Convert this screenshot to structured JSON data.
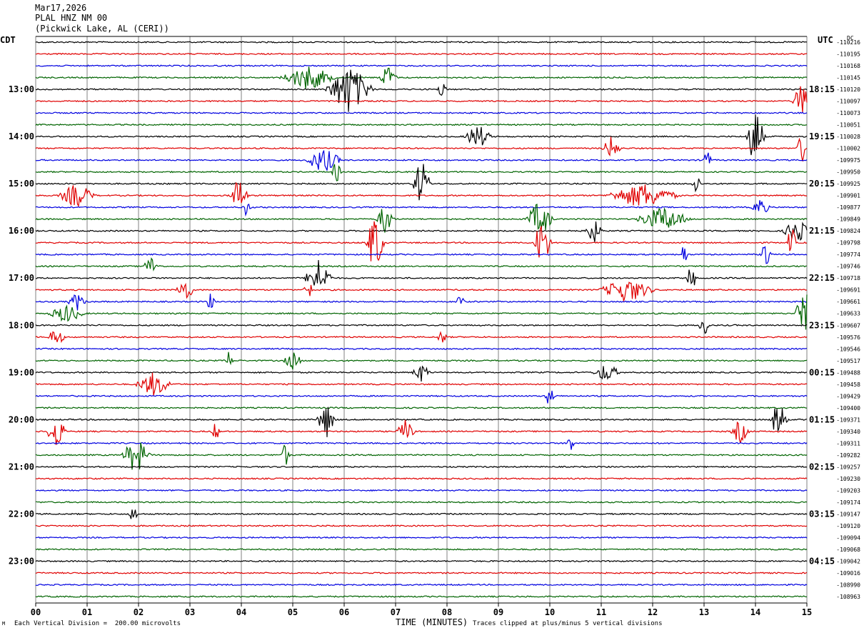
{
  "header": {
    "date": "Mar17,2026",
    "station": "PLAL HNZ NM 00",
    "location": "(Pickwick Lake, AL (CERI))"
  },
  "left_tz": "CDT",
  "right_tz": "UTC",
  "dc_label": "DC",
  "footer": {
    "scale_note": "Each Vertical Division =  200.00 microvolts",
    "xlabel": "TIME (MINUTES)",
    "clip_note": "Traces clipped at plus/minus 5 vertical divisions",
    "logo_text": "M"
  },
  "colors": {
    "trace_cycle": [
      "#000000",
      "#e00000",
      "#0000e0",
      "#006400"
    ],
    "grid": "#808080"
  },
  "chart_data": {
    "type": "line",
    "title": "PLAL HNZ NM 00",
    "xlabel": "TIME (MINUTES)",
    "ylabel": "",
    "x_ticks": [
      "00",
      "01",
      "02",
      "03",
      "04",
      "05",
      "06",
      "07",
      "08",
      "09",
      "10",
      "11",
      "12",
      "13",
      "14",
      "15"
    ],
    "xlim": [
      0,
      15
    ],
    "grid": true,
    "trace_count": 48,
    "left_hour_labels": [
      "13:00",
      "14:00",
      "15:00",
      "16:00",
      "17:00",
      "18:00",
      "19:00",
      "20:00",
      "21:00",
      "22:00",
      "23:00"
    ],
    "right_hour_labels": [
      "18:15",
      "19:15",
      "20:15",
      "21:15",
      "22:15",
      "23:15",
      "00:15",
      "01:15",
      "02:15",
      "03:15",
      "04:15"
    ],
    "dc_offsets": [
      "-110216",
      "-110195",
      "-110168",
      "-110145",
      "-110120",
      "-110097",
      "-110073",
      "-110051",
      "-110028",
      "-110002",
      "-109975",
      "-109950",
      "-109925",
      "-109901",
      "-109877",
      "-109849",
      "-109824",
      "-109798",
      "-109774",
      "-109746",
      "-109718",
      "-109691",
      "-109661",
      "-109633",
      "-109607",
      "-109576",
      "-109546",
      "-109517",
      "-109488",
      "-109458",
      "-109429",
      "-109400",
      "-109371",
      "-109340",
      "-109311",
      "-109282",
      "-109257",
      "-109230",
      "-109203",
      "-109174",
      "-109147",
      "-109120",
      "-109094",
      "-109068",
      "-109042",
      "-109016",
      "-108990",
      "-108963"
    ],
    "events": [
      {
        "trace": 3,
        "minute": 5.3,
        "amp": 2,
        "dur": 0.6
      },
      {
        "trace": 3,
        "minute": 6.85,
        "amp": 2,
        "dur": 0.2
      },
      {
        "trace": 4,
        "minute": 6.1,
        "amp": 4,
        "dur": 0.5
      },
      {
        "trace": 4,
        "minute": 7.9,
        "amp": 1.5,
        "dur": 0.1
      },
      {
        "trace": 5,
        "minute": 14.9,
        "amp": 3,
        "dur": 0.2
      },
      {
        "trace": 8,
        "minute": 8.6,
        "amp": 2,
        "dur": 0.3
      },
      {
        "trace": 8,
        "minute": 14.0,
        "amp": 5,
        "dur": 0.2
      },
      {
        "trace": 9,
        "minute": 11.2,
        "amp": 2,
        "dur": 0.2
      },
      {
        "trace": 9,
        "minute": 14.9,
        "amp": 3,
        "dur": 0.1
      },
      {
        "trace": 10,
        "minute": 5.6,
        "amp": 2,
        "dur": 0.4
      },
      {
        "trace": 10,
        "minute": 13.05,
        "amp": 2,
        "dur": 0.1
      },
      {
        "trace": 11,
        "minute": 5.85,
        "amp": 2,
        "dur": 0.1
      },
      {
        "trace": 12,
        "minute": 7.5,
        "amp": 4,
        "dur": 0.2
      },
      {
        "trace": 12,
        "minute": 12.85,
        "amp": 2,
        "dur": 0.1
      },
      {
        "trace": 13,
        "minute": 0.8,
        "amp": 2,
        "dur": 0.4
      },
      {
        "trace": 13,
        "minute": 3.95,
        "amp": 3,
        "dur": 0.2
      },
      {
        "trace": 13,
        "minute": 11.8,
        "amp": 2,
        "dur": 0.8
      },
      {
        "trace": 14,
        "minute": 4.1,
        "amp": 1.5,
        "dur": 0.1
      },
      {
        "trace": 14,
        "minute": 14.1,
        "amp": 1.5,
        "dur": 0.2
      },
      {
        "trace": 15,
        "minute": 6.8,
        "amp": 2.5,
        "dur": 0.2
      },
      {
        "trace": 15,
        "minute": 9.8,
        "amp": 3,
        "dur": 0.3
      },
      {
        "trace": 15,
        "minute": 12.2,
        "amp": 2,
        "dur": 0.6
      },
      {
        "trace": 16,
        "minute": 10.85,
        "amp": 2,
        "dur": 0.2
      },
      {
        "trace": 16,
        "minute": 14.8,
        "amp": 2,
        "dur": 0.3
      },
      {
        "trace": 17,
        "minute": 6.6,
        "amp": 5,
        "dur": 0.2
      },
      {
        "trace": 17,
        "minute": 9.85,
        "amp": 4,
        "dur": 0.2
      },
      {
        "trace": 17,
        "minute": 14.7,
        "amp": 3,
        "dur": 0.1
      },
      {
        "trace": 18,
        "minute": 14.2,
        "amp": 4,
        "dur": 0.1
      },
      {
        "trace": 18,
        "minute": 12.6,
        "amp": 2,
        "dur": 0.1
      },
      {
        "trace": 19,
        "minute": 2.25,
        "amp": 1.5,
        "dur": 0.2
      },
      {
        "trace": 20,
        "minute": 5.5,
        "amp": 3,
        "dur": 0.3
      },
      {
        "trace": 20,
        "minute": 12.75,
        "amp": 3,
        "dur": 0.1
      },
      {
        "trace": 21,
        "minute": 2.9,
        "amp": 2,
        "dur": 0.2
      },
      {
        "trace": 21,
        "minute": 5.3,
        "amp": 2,
        "dur": 0.1
      },
      {
        "trace": 21,
        "minute": 11.5,
        "amp": 2,
        "dur": 0.6
      },
      {
        "trace": 22,
        "minute": 0.8,
        "amp": 1.5,
        "dur": 0.2
      },
      {
        "trace": 22,
        "minute": 3.4,
        "amp": 1.5,
        "dur": 0.1
      },
      {
        "trace": 22,
        "minute": 8.25,
        "amp": 1.5,
        "dur": 0.1
      },
      {
        "trace": 23,
        "minute": 0.6,
        "amp": 1.5,
        "dur": 0.4
      },
      {
        "trace": 23,
        "minute": 14.95,
        "amp": 4,
        "dur": 0.2
      },
      {
        "trace": 24,
        "minute": 13.0,
        "amp": 3,
        "dur": 0.1
      },
      {
        "trace": 25,
        "minute": 0.4,
        "amp": 1.5,
        "dur": 0.2
      },
      {
        "trace": 25,
        "minute": 7.9,
        "amp": 1.5,
        "dur": 0.1
      },
      {
        "trace": 27,
        "minute": 3.75,
        "amp": 1.5,
        "dur": 0.1
      },
      {
        "trace": 27,
        "minute": 5.0,
        "amp": 1.5,
        "dur": 0.2
      },
      {
        "trace": 28,
        "minute": 7.5,
        "amp": 1.5,
        "dur": 0.2
      },
      {
        "trace": 28,
        "minute": 11.1,
        "amp": 1.5,
        "dur": 0.3
      },
      {
        "trace": 29,
        "minute": 2.3,
        "amp": 2,
        "dur": 0.4
      },
      {
        "trace": 30,
        "minute": 10.0,
        "amp": 2,
        "dur": 0.1
      },
      {
        "trace": 32,
        "minute": 5.65,
        "amp": 3,
        "dur": 0.2
      },
      {
        "trace": 32,
        "minute": 14.45,
        "amp": 3,
        "dur": 0.2
      },
      {
        "trace": 33,
        "minute": 0.4,
        "amp": 3,
        "dur": 0.2
      },
      {
        "trace": 33,
        "minute": 3.5,
        "amp": 1.5,
        "dur": 0.1
      },
      {
        "trace": 33,
        "minute": 7.2,
        "amp": 2,
        "dur": 0.2
      },
      {
        "trace": 33,
        "minute": 13.7,
        "amp": 2,
        "dur": 0.2
      },
      {
        "trace": 34,
        "minute": 10.4,
        "amp": 1.5,
        "dur": 0.1
      },
      {
        "trace": 35,
        "minute": 1.95,
        "amp": 3,
        "dur": 0.3
      },
      {
        "trace": 35,
        "minute": 4.85,
        "amp": 2,
        "dur": 0.1
      },
      {
        "trace": 40,
        "minute": 1.9,
        "amp": 1.5,
        "dur": 0.1
      }
    ]
  }
}
